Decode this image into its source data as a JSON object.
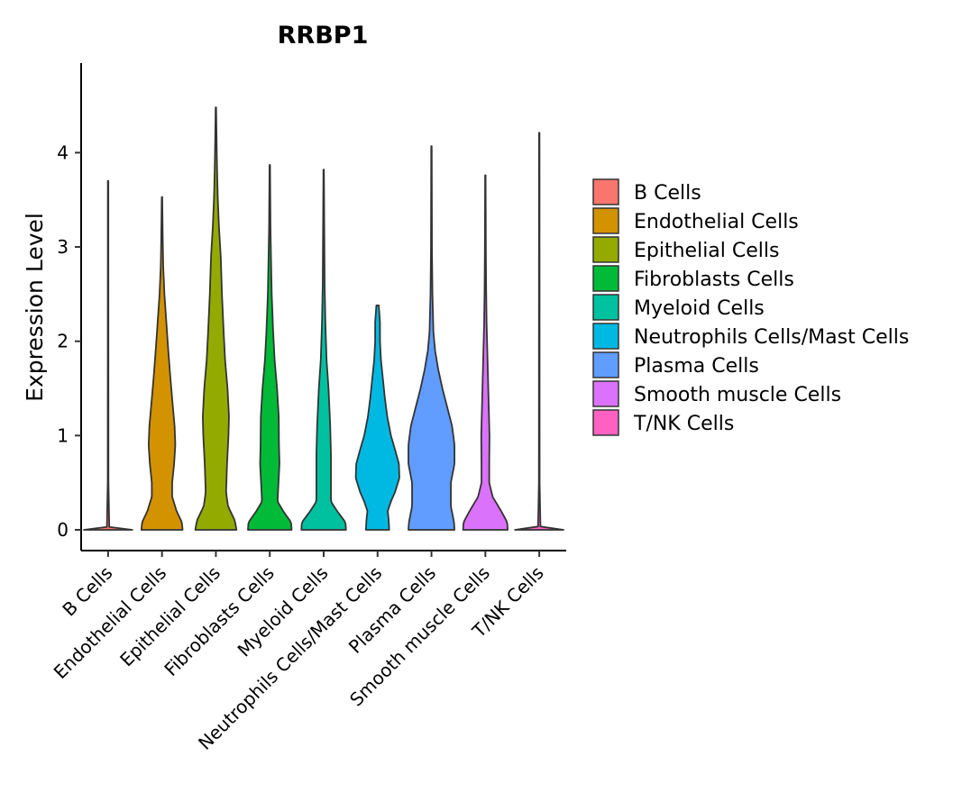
{
  "chart_data": {
    "type": "violin",
    "title": "RRBP1",
    "xlabel": "",
    "ylabel": "Expression Level",
    "ylim": [
      -0.22,
      4.95
    ],
    "yticks": [
      0,
      1,
      2,
      3,
      4
    ],
    "legend_position": "right",
    "categories": [
      "B Cells",
      "Endothelial Cells",
      "Epithelial Cells",
      "Fibroblasts Cells",
      "Myeloid Cells",
      "Neutrophils Cells/Mast Cells",
      "Plasma Cells",
      "Smooth muscle Cells",
      "T/NK Cells"
    ],
    "colors": [
      "#F8766D",
      "#D39200",
      "#93AA00",
      "#00BA38",
      "#00C19F",
      "#00B9E3",
      "#619CFF",
      "#DB72FB",
      "#FF61C3"
    ],
    "series": [
      {
        "name": "B Cells",
        "ymin": 0,
        "ymax": 3.7,
        "profile": [
          [
            0,
            1
          ],
          [
            0.02,
            0.05
          ],
          [
            0.5,
            0.015
          ],
          [
            3.7,
            0.01
          ]
        ]
      },
      {
        "name": "Endothelial Cells",
        "ymin": 0,
        "ymax": 3.53,
        "profile": [
          [
            0,
            0.85
          ],
          [
            0.08,
            0.82
          ],
          [
            0.2,
            0.6
          ],
          [
            0.35,
            0.42
          ],
          [
            0.5,
            0.42
          ],
          [
            0.7,
            0.5
          ],
          [
            0.9,
            0.55
          ],
          [
            1.1,
            0.52
          ],
          [
            1.3,
            0.45
          ],
          [
            1.6,
            0.35
          ],
          [
            1.9,
            0.26
          ],
          [
            2.2,
            0.18
          ],
          [
            2.5,
            0.1
          ],
          [
            2.8,
            0.05
          ],
          [
            3.1,
            0.03
          ],
          [
            3.53,
            0.01
          ]
        ]
      },
      {
        "name": "Epithelial Cells",
        "ymin": 0,
        "ymax": 4.48,
        "profile": [
          [
            0,
            0.85
          ],
          [
            0.1,
            0.78
          ],
          [
            0.25,
            0.5
          ],
          [
            0.4,
            0.42
          ],
          [
            0.7,
            0.46
          ],
          [
            1.0,
            0.52
          ],
          [
            1.2,
            0.54
          ],
          [
            1.5,
            0.48
          ],
          [
            1.8,
            0.38
          ],
          [
            2.1,
            0.32
          ],
          [
            2.5,
            0.25
          ],
          [
            2.9,
            0.2
          ],
          [
            3.2,
            0.13
          ],
          [
            3.5,
            0.08
          ],
          [
            3.8,
            0.05
          ],
          [
            4.1,
            0.03
          ],
          [
            4.48,
            0.01
          ]
        ]
      },
      {
        "name": "Fibroblasts Cells",
        "ymin": 0,
        "ymax": 3.87,
        "profile": [
          [
            0,
            0.9
          ],
          [
            0.08,
            0.88
          ],
          [
            0.2,
            0.55
          ],
          [
            0.3,
            0.32
          ],
          [
            0.5,
            0.36
          ],
          [
            0.7,
            0.4
          ],
          [
            0.9,
            0.38
          ],
          [
            1.2,
            0.37
          ],
          [
            1.5,
            0.3
          ],
          [
            1.8,
            0.2
          ],
          [
            2.1,
            0.14
          ],
          [
            2.5,
            0.08
          ],
          [
            2.9,
            0.05
          ],
          [
            3.2,
            0.03
          ],
          [
            3.87,
            0.01
          ]
        ]
      },
      {
        "name": "Myeloid Cells",
        "ymin": 0,
        "ymax": 3.82,
        "profile": [
          [
            0,
            0.92
          ],
          [
            0.08,
            0.9
          ],
          [
            0.2,
            0.55
          ],
          [
            0.3,
            0.3
          ],
          [
            0.5,
            0.3
          ],
          [
            0.8,
            0.3
          ],
          [
            1.1,
            0.27
          ],
          [
            1.5,
            0.2
          ],
          [
            1.8,
            0.12
          ],
          [
            2.2,
            0.07
          ],
          [
            2.6,
            0.04
          ],
          [
            3.0,
            0.03
          ],
          [
            3.82,
            0.01
          ]
        ]
      },
      {
        "name": "Neutrophils Cells/Mast Cells",
        "ymin": 0,
        "ymax": 2.38,
        "profile": [
          [
            0,
            0.48
          ],
          [
            0.1,
            0.46
          ],
          [
            0.2,
            0.42
          ],
          [
            0.3,
            0.55
          ],
          [
            0.4,
            0.72
          ],
          [
            0.55,
            0.9
          ],
          [
            0.7,
            0.88
          ],
          [
            0.85,
            0.72
          ],
          [
            1.0,
            0.55
          ],
          [
            1.2,
            0.4
          ],
          [
            1.4,
            0.3
          ],
          [
            1.6,
            0.22
          ],
          [
            1.8,
            0.14
          ],
          [
            2.0,
            0.1
          ],
          [
            2.2,
            0.1
          ],
          [
            2.38,
            0.05
          ]
        ]
      },
      {
        "name": "Plasma Cells",
        "ymin": 0,
        "ymax": 4.07,
        "profile": [
          [
            0,
            0.95
          ],
          [
            0.08,
            0.93
          ],
          [
            0.25,
            0.8
          ],
          [
            0.5,
            0.8
          ],
          [
            0.7,
            0.95
          ],
          [
            0.9,
            0.95
          ],
          [
            1.1,
            0.85
          ],
          [
            1.3,
            0.65
          ],
          [
            1.5,
            0.45
          ],
          [
            1.7,
            0.28
          ],
          [
            1.9,
            0.15
          ],
          [
            2.1,
            0.08
          ],
          [
            2.5,
            0.04
          ],
          [
            3.0,
            0.02
          ],
          [
            4.07,
            0.01
          ]
        ]
      },
      {
        "name": "Smooth muscle Cells",
        "ymin": 0,
        "ymax": 3.76,
        "profile": [
          [
            0,
            0.92
          ],
          [
            0.08,
            0.9
          ],
          [
            0.2,
            0.65
          ],
          [
            0.35,
            0.3
          ],
          [
            0.5,
            0.16
          ],
          [
            0.7,
            0.16
          ],
          [
            1.0,
            0.17
          ],
          [
            1.3,
            0.14
          ],
          [
            1.6,
            0.11
          ],
          [
            1.9,
            0.08
          ],
          [
            2.2,
            0.05
          ],
          [
            2.6,
            0.03
          ],
          [
            3.0,
            0.02
          ],
          [
            3.76,
            0.01
          ]
        ]
      },
      {
        "name": "T/NK Cells",
        "ymin": 0,
        "ymax": 4.21,
        "profile": [
          [
            0,
            1
          ],
          [
            0.02,
            0.05
          ],
          [
            0.5,
            0.015
          ],
          [
            4.21,
            0.01
          ]
        ]
      }
    ]
  }
}
